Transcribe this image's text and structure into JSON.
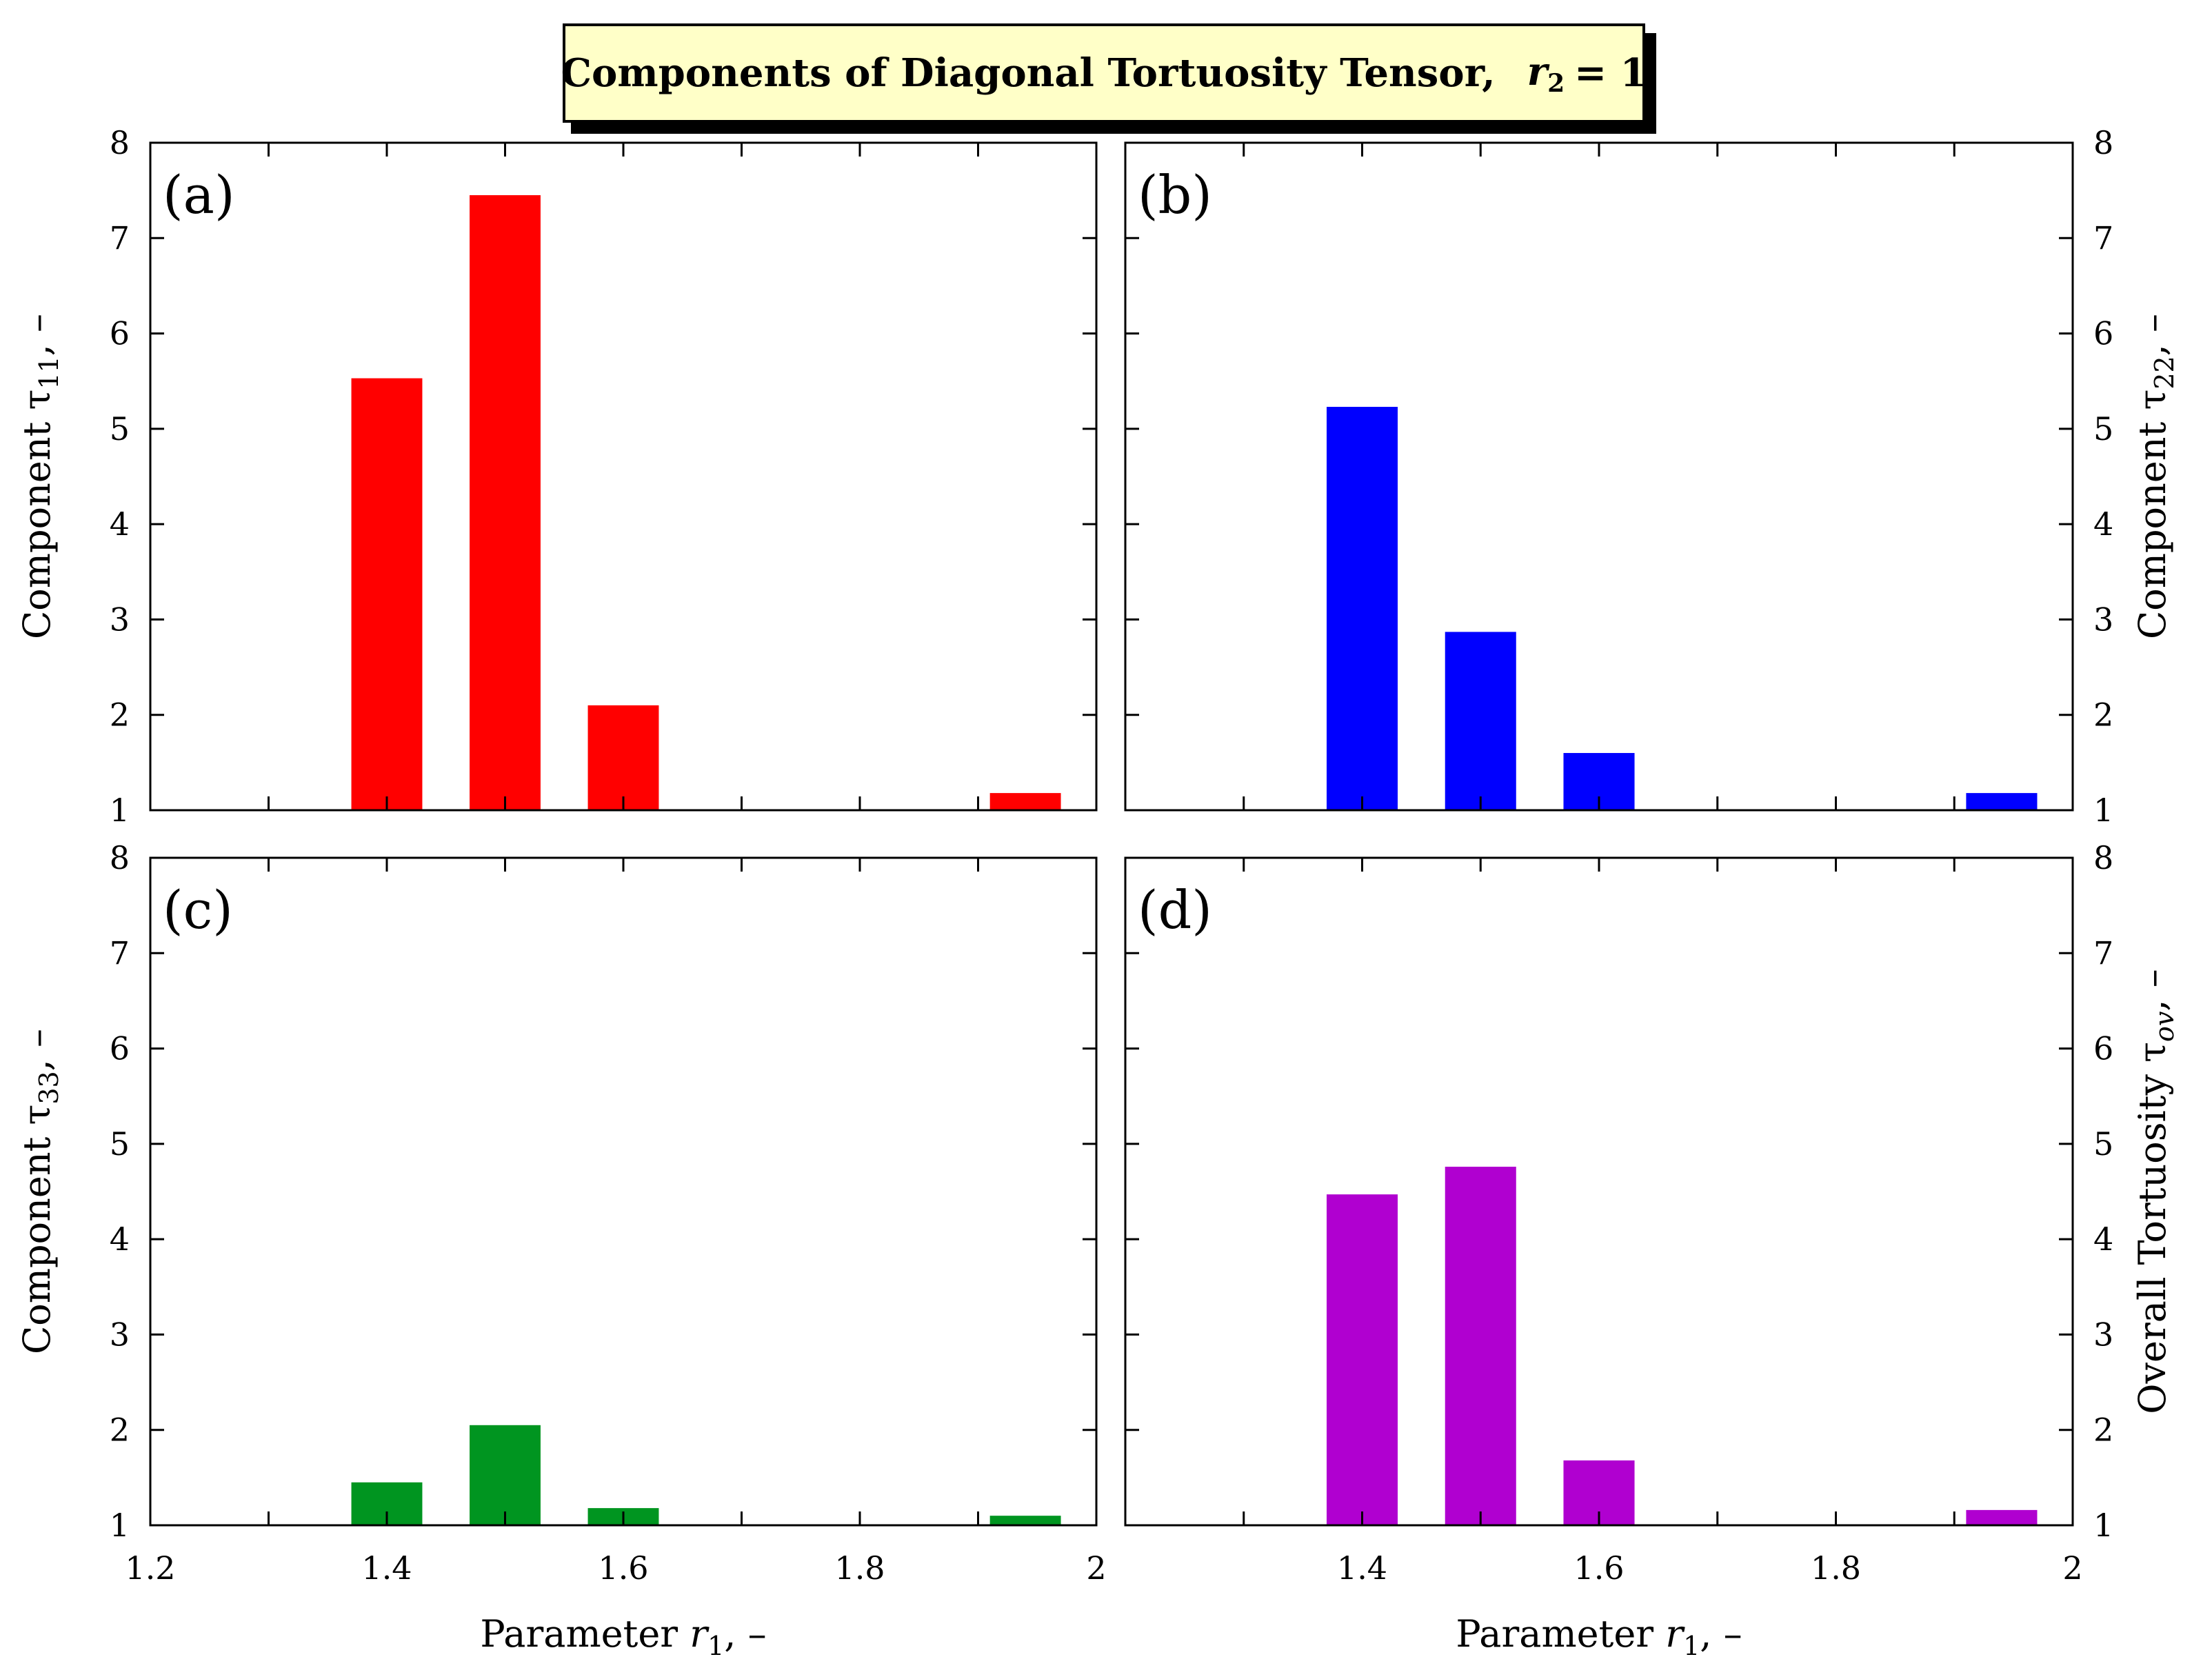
{
  "title": {
    "main": "Components of Diagonal Tortuosity Tensor,",
    "param_symbol": "r",
    "param_subscript": "2",
    "param_value": "= 1"
  },
  "x_axis": {
    "label_prefix": "Parameter ",
    "label_symbol": "r",
    "label_subscript": "1",
    "label_suffix": ", –"
  },
  "chart_data": [
    {
      "panel": "(a)",
      "type": "bar",
      "x": [
        1.4,
        1.5,
        1.6,
        1.94
      ],
      "values": [
        5.53,
        7.45,
        2.1,
        1.18
      ],
      "color": "#ff0000",
      "ylabel_prefix": "Component τ",
      "ylabel_subscript": "11",
      "ylabel_suffix": ", –",
      "ylabel_side": "left",
      "xlim": [
        1.2,
        2.0
      ],
      "ylim": [
        1,
        8
      ],
      "yticks": [
        "1",
        "2",
        "3",
        "4",
        "5",
        "6",
        "7",
        "8"
      ],
      "xticks": [],
      "grid": false
    },
    {
      "panel": "(b)",
      "type": "bar",
      "x": [
        1.4,
        1.5,
        1.6,
        1.94
      ],
      "values": [
        5.23,
        2.87,
        1.6,
        1.18
      ],
      "color": "#0000ff",
      "ylabel_prefix": "Component τ",
      "ylabel_subscript": "22",
      "ylabel_suffix": ", –",
      "ylabel_side": "right",
      "xlim": [
        1.2,
        2.0
      ],
      "ylim": [
        1,
        8
      ],
      "yticks": [
        "1",
        "2",
        "3",
        "4",
        "5",
        "6",
        "7",
        "8"
      ],
      "xticks": [],
      "grid": false
    },
    {
      "panel": "(c)",
      "type": "bar",
      "x": [
        1.4,
        1.5,
        1.6,
        1.94
      ],
      "values": [
        1.45,
        2.05,
        1.18,
        1.1
      ],
      "color": "#009520",
      "ylabel_prefix": "Component τ",
      "ylabel_subscript": "33",
      "ylabel_suffix": ", –",
      "ylabel_side": "left",
      "xlim": [
        1.2,
        2.0
      ],
      "ylim": [
        1,
        8
      ],
      "yticks": [
        "1",
        "2",
        "3",
        "4",
        "5",
        "6",
        "7",
        "8"
      ],
      "xticks": [
        "1.2",
        "1.4",
        "1.6",
        "1.8",
        "2"
      ],
      "grid": false
    },
    {
      "panel": "(d)",
      "type": "bar",
      "x": [
        1.4,
        1.5,
        1.6,
        1.94
      ],
      "values": [
        4.47,
        4.76,
        1.68,
        1.16
      ],
      "color": "#b000d0",
      "ylabel_prefix": "Overall Tortuosity τ",
      "ylabel_subscript": "ov",
      "ylabel_suffix": ", –",
      "ylabel_side": "right",
      "xlim": [
        1.2,
        2.0
      ],
      "ylim": [
        1,
        8
      ],
      "yticks": [
        "1",
        "2",
        "3",
        "4",
        "5",
        "6",
        "7",
        "8"
      ],
      "xticks": [
        "1.4",
        "1.6",
        "1.8",
        "2"
      ],
      "grid": false
    }
  ]
}
